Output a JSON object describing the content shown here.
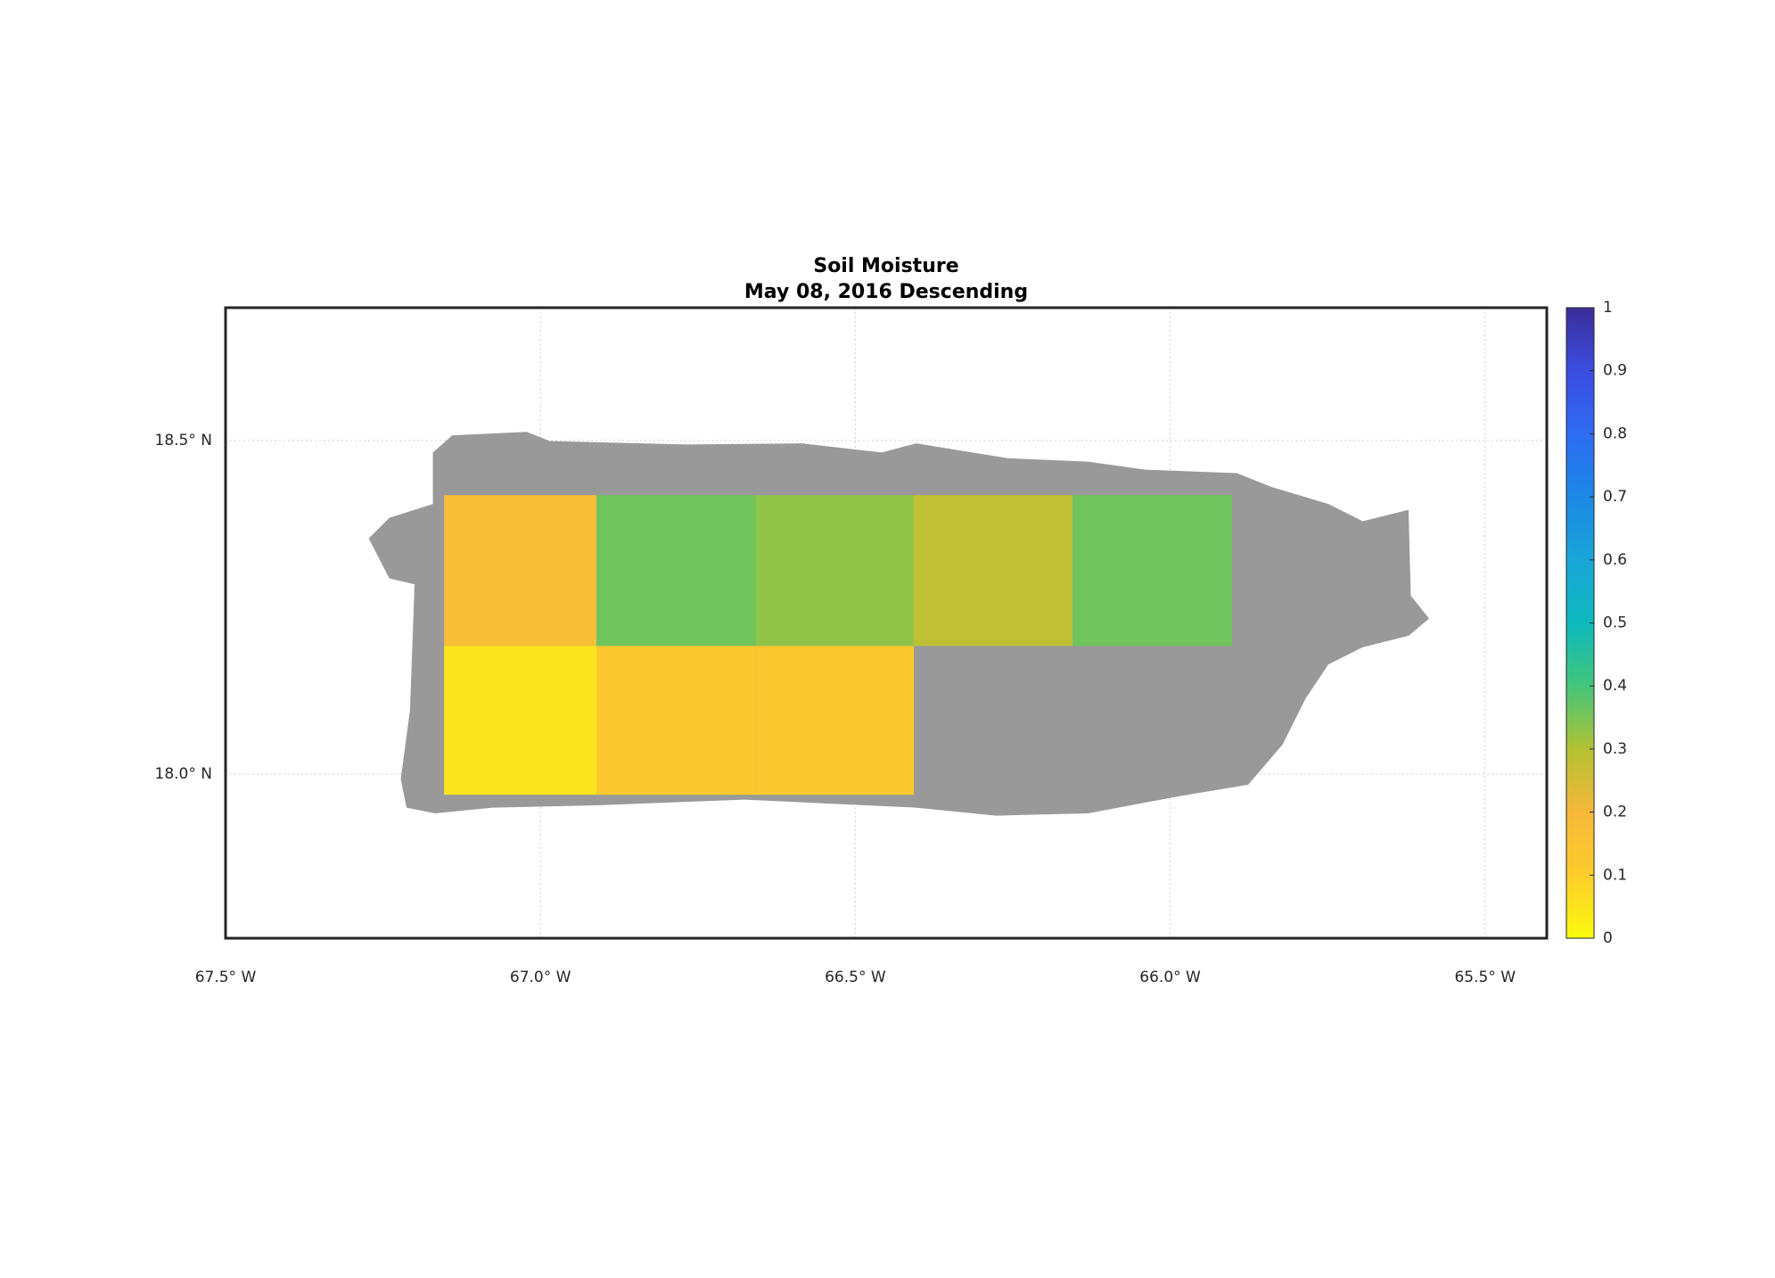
{
  "chart_data": {
    "type": "heatmap",
    "title": "Soil Moisture",
    "subtitle": "May 08, 2016 Descending",
    "x_edges": [
      -67.153,
      -66.911,
      -66.658,
      -66.407,
      -66.155,
      -65.902
    ],
    "y_edges": [
      18.418,
      18.192,
      17.969
    ],
    "values": [
      [
        0.17,
        0.36,
        0.33,
        0.28,
        0.36
      ],
      [
        0.05,
        0.12,
        0.12,
        null,
        null
      ]
    ],
    "xlim": [
      -67.5,
      -65.402
    ],
    "ylim": [
      17.754,
      18.699
    ],
    "xticks": [
      {
        "value": -67.5,
        "label": "67.5° W"
      },
      {
        "value": -67.0,
        "label": "67.0° W"
      },
      {
        "value": -66.5,
        "label": "66.5° W"
      },
      {
        "value": -66.0,
        "label": "66.0° W"
      },
      {
        "value": -65.5,
        "label": "65.5° W"
      }
    ],
    "yticks": [
      {
        "value": 18.0,
        "label": "18.0° N"
      },
      {
        "value": 18.5,
        "label": "18.5° N"
      }
    ],
    "grid": true,
    "land_color": "#999999",
    "clim": [
      0,
      1
    ],
    "cticks": [
      0,
      0.1,
      0.2,
      0.3,
      0.4,
      0.5,
      0.6,
      0.7,
      0.8,
      0.9,
      1
    ],
    "colormap": [
      "#f9fb0e",
      "#fccd2c",
      "#f6b83b",
      "#b3c234",
      "#44c57a",
      "#0db9bd",
      "#1aa5d8",
      "#1c88e6",
      "#2e6cf2",
      "#3c4de0",
      "#3b2d99"
    ]
  }
}
